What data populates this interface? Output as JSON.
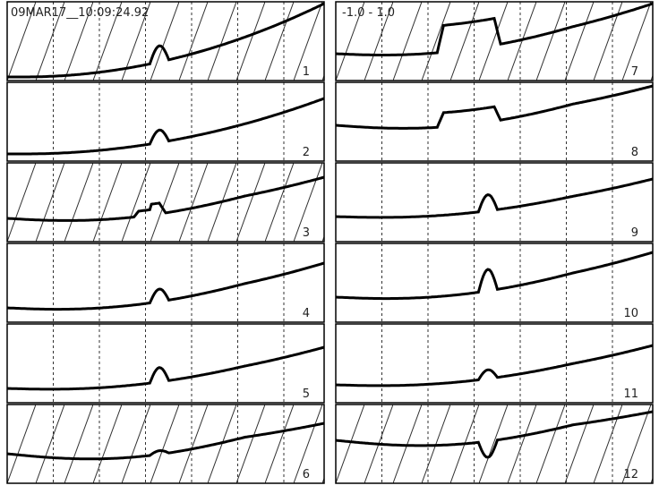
{
  "header": {
    "timestamp": "09MAR17__10:09:24.92",
    "range": "-1.0 - 1.0"
  },
  "panels": [
    {
      "label": "1",
      "hatched": true
    },
    {
      "label": "2",
      "hatched": false
    },
    {
      "label": "3",
      "hatched": true
    },
    {
      "label": "4",
      "hatched": false
    },
    {
      "label": "5",
      "hatched": false
    },
    {
      "label": "6",
      "hatched": true
    },
    {
      "label": "7",
      "hatched": true
    },
    {
      "label": "8",
      "hatched": false
    },
    {
      "label": "9",
      "hatched": false
    },
    {
      "label": "10",
      "hatched": false
    },
    {
      "label": "11",
      "hatched": false
    },
    {
      "label": "12",
      "hatched": true
    }
  ]
}
